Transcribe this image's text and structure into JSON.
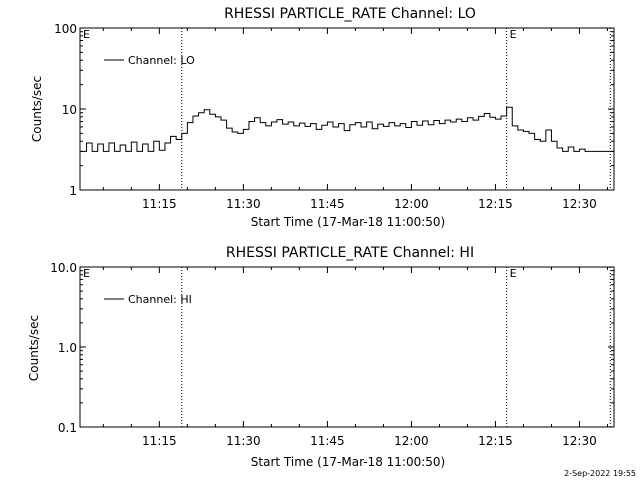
{
  "footer_date": "2-Sep-2022 19:55",
  "chart_data": [
    {
      "type": "line",
      "title": "RHESSI PARTICLE_RATE Channel: LO",
      "xlabel": "Start Time (17-Mar-18 11:00:50)",
      "ylabel": "Counts/sec",
      "y_scale": "log",
      "ylim": [
        1,
        100
      ],
      "y_tick_labels": [
        "1",
        "10",
        "100"
      ],
      "x_tick_labels": [
        "11:15",
        "11:30",
        "11:45",
        "12:00",
        "12:15",
        "12:30"
      ],
      "xlim": [
        "11:00:50",
        "12:36:10"
      ],
      "vlines": [
        "11:19:00",
        "12:17:00",
        "12:35:30"
      ],
      "vline_markers": [
        {
          "time": "11:00:50",
          "label": "E"
        },
        {
          "time": "12:17:00",
          "label": "E"
        }
      ],
      "legend": "Channel: LO",
      "legend_position": "top-left",
      "series": [
        {
          "name": "Channel: LO",
          "x": [
            "11:01:00",
            "11:02:00",
            "11:03:00",
            "11:04:00",
            "11:05:00",
            "11:06:00",
            "11:07:00",
            "11:08:00",
            "11:09:00",
            "11:10:00",
            "11:11:00",
            "11:12:00",
            "11:13:00",
            "11:14:00",
            "11:15:00",
            "11:16:00",
            "11:17:00",
            "11:18:00",
            "11:19:00",
            "11:20:00",
            "11:21:00",
            "11:22:00",
            "11:23:00",
            "11:24:00",
            "11:25:00",
            "11:26:00",
            "11:27:00",
            "11:28:00",
            "11:29:00",
            "11:30:00",
            "11:31:00",
            "11:32:00",
            "11:33:00",
            "11:34:00",
            "11:35:00",
            "11:36:00",
            "11:37:00",
            "11:38:00",
            "11:39:00",
            "11:40:00",
            "11:41:00",
            "11:42:00",
            "11:43:00",
            "11:44:00",
            "11:45:00",
            "11:46:00",
            "11:47:00",
            "11:48:00",
            "11:49:00",
            "11:50:00",
            "11:51:00",
            "11:52:00",
            "11:53:00",
            "11:54:00",
            "11:55:00",
            "11:56:00",
            "11:57:00",
            "11:58:00",
            "11:59:00",
            "12:00:00",
            "12:01:00",
            "12:02:00",
            "12:03:00",
            "12:04:00",
            "12:05:00",
            "12:06:00",
            "12:07:00",
            "12:08:00",
            "12:09:00",
            "12:10:00",
            "12:11:00",
            "12:12:00",
            "12:13:00",
            "12:14:00",
            "12:15:00",
            "12:16:00",
            "12:17:00",
            "12:18:00",
            "12:19:00",
            "12:20:00",
            "12:21:00",
            "12:22:00",
            "12:23:00",
            "12:24:00",
            "12:25:00",
            "12:26:00",
            "12:27:00",
            "12:28:00",
            "12:29:00",
            "12:30:00",
            "12:31:00",
            "12:32:00",
            "12:33:00",
            "12:34:00",
            "12:35:00"
          ],
          "values": [
            3.0,
            3.8,
            3.0,
            3.7,
            3.0,
            3.8,
            3.0,
            3.6,
            3.0,
            3.9,
            3.0,
            3.7,
            3.0,
            4.0,
            3.1,
            3.8,
            4.6,
            4.2,
            5.0,
            6.8,
            8.2,
            9.0,
            9.8,
            8.6,
            8.0,
            7.3,
            5.8,
            5.2,
            5.0,
            5.6,
            7.0,
            7.8,
            6.8,
            6.2,
            6.9,
            7.4,
            6.5,
            6.9,
            6.2,
            6.7,
            6.1,
            6.6,
            5.6,
            6.3,
            6.9,
            6.0,
            6.6,
            5.4,
            6.4,
            6.8,
            6.0,
            6.9,
            5.7,
            6.5,
            6.1,
            6.8,
            6.2,
            6.6,
            5.9,
            7.0,
            6.3,
            7.1,
            6.4,
            7.2,
            6.6,
            7.3,
            6.9,
            7.5,
            7.0,
            7.8,
            7.3,
            8.1,
            8.8,
            7.9,
            7.5,
            8.2,
            10.5,
            6.2,
            5.5,
            5.3,
            5.0,
            4.2,
            4.0,
            5.5,
            4.0,
            3.3,
            3.0,
            3.4,
            3.0,
            3.2,
            3.0,
            3.0,
            3.0,
            3.0,
            3.0
          ]
        }
      ]
    },
    {
      "type": "line",
      "title": "RHESSI PARTICLE_RATE Channel: HI",
      "xlabel": "Start Time (17-Mar-18 11:00:50)",
      "ylabel": "Counts/sec",
      "y_scale": "log",
      "ylim": [
        0.1,
        10
      ],
      "y_tick_labels": [
        "0.1",
        "1.0",
        "10.0"
      ],
      "x_tick_labels": [
        "11:15",
        "11:30",
        "11:45",
        "12:00",
        "12:15",
        "12:30"
      ],
      "xlim": [
        "11:00:50",
        "12:36:10"
      ],
      "vlines": [
        "11:19:00",
        "12:17:00",
        "12:35:30"
      ],
      "vline_markers": [
        {
          "time": "11:00:50",
          "label": "E"
        },
        {
          "time": "12:17:00",
          "label": "E"
        }
      ],
      "legend": "Channel: HI",
      "legend_position": "top-left",
      "series": [
        {
          "name": "Channel: HI",
          "x": [],
          "values": []
        }
      ]
    }
  ]
}
